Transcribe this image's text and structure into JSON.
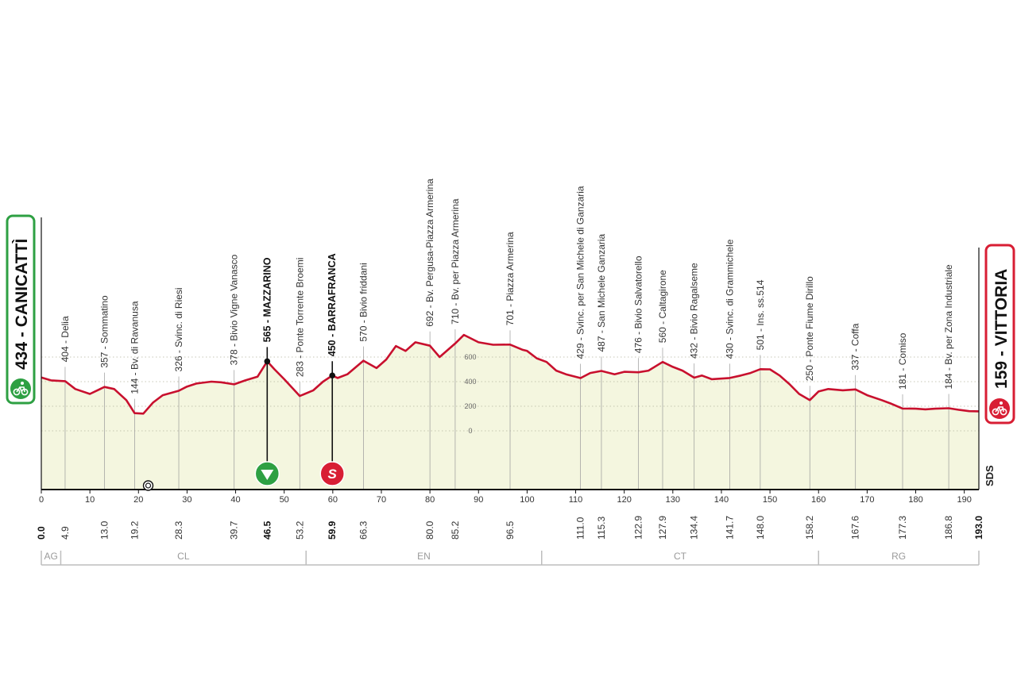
{
  "colors": {
    "profile_fill": "#f4f6df",
    "profile_line": "#c8102e",
    "start_color": "#2ea043",
    "finish_color": "#d81e34",
    "sprint_color": "#d81e34",
    "kom_color": "#2ea043"
  },
  "start": {
    "altitude": "434",
    "name": "CANICATTÌ",
    "label": "434 - CANICATTÌ",
    "icon": "cyclist-icon"
  },
  "finish": {
    "altitude": "159",
    "name": "VITTORIA",
    "label": "159 - VITTORIA",
    "icon": "cyclist-icon"
  },
  "chart_data": {
    "type": "area",
    "xlabel": "",
    "ylabel": "",
    "xlim": [
      0,
      193
    ],
    "x_ticks": [
      0,
      10,
      20,
      30,
      40,
      50,
      60,
      70,
      80,
      90,
      100,
      110,
      120,
      130,
      140,
      150,
      160,
      170,
      180,
      190
    ],
    "y_ticks": [
      0,
      200,
      400,
      600
    ],
    "series": [
      {
        "values_km": [
          0,
          2,
          4.9,
          7,
          10,
          13,
          15,
          17.5,
          19.2,
          21,
          23,
          25,
          28.3,
          30,
          32,
          35,
          37,
          39.7,
          42,
          44.5,
          46.5,
          48,
          50,
          53.2,
          56,
          58,
          59.9,
          61,
          63,
          66.3,
          69,
          71,
          73,
          75,
          77,
          80,
          82,
          85.2,
          87,
          90,
          93,
          96.5,
          99,
          100,
          102,
          104,
          106,
          108,
          111,
          113,
          115.3,
          118,
          120,
          122.9,
          125,
          127.9,
          130,
          132,
          134.4,
          136,
          138,
          141.7,
          144,
          146,
          148,
          150,
          152,
          154,
          156,
          158.2,
          160,
          162,
          165,
          167.6,
          170,
          173,
          175,
          177.3,
          180,
          182,
          184,
          186.8,
          189,
          191,
          193
        ],
        "values_alt": [
          434,
          410,
          404,
          340,
          300,
          357,
          340,
          250,
          144,
          140,
          230,
          290,
          326,
          360,
          385,
          400,
          395,
          378,
          410,
          440,
          565,
          500,
          420,
          283,
          330,
          400,
          450,
          430,
          460,
          570,
          510,
          580,
          690,
          650,
          720,
          692,
          600,
          710,
          780,
          720,
          700,
          701,
          660,
          650,
          590,
          560,
          490,
          460,
          429,
          470,
          487,
          460,
          480,
          476,
          490,
          560,
          520,
          490,
          432,
          450,
          420,
          430,
          450,
          470,
          501,
          500,
          450,
          380,
          300,
          250,
          320,
          340,
          330,
          337,
          290,
          250,
          220,
          181,
          180,
          175,
          180,
          184,
          170,
          160,
          159
        ]
      }
    ],
    "waypoints": [
      {
        "km": "0.0",
        "km_value": 0,
        "alt": 434,
        "label": "434 - CANICATTÌ",
        "bold": true,
        "is_endpoint": true
      },
      {
        "km": "4.9",
        "km_value": 4.9,
        "alt": 404,
        "label": "404 - Delia",
        "bold": false
      },
      {
        "km": "13.0",
        "km_value": 13.0,
        "alt": 357,
        "label": "357 - Sommatino",
        "bold": false
      },
      {
        "km": "19.2",
        "km_value": 19.2,
        "alt": 144,
        "label": "144 - Bv. di Ravanusa",
        "bold": false
      },
      {
        "km": "28.3",
        "km_value": 28.3,
        "alt": 326,
        "label": "326 - Svinc. di Riesi",
        "bold": false
      },
      {
        "km": "39.7",
        "km_value": 39.7,
        "alt": 378,
        "label": "378 - Bivio Vigne Vanasco",
        "bold": false
      },
      {
        "km": "46.5",
        "km_value": 46.5,
        "alt": 565,
        "label": "565 - MAZZARINO",
        "bold": true,
        "marker": "kom"
      },
      {
        "km": "53.2",
        "km_value": 53.2,
        "alt": 283,
        "label": "283 - Ponte Torrente Broemi",
        "bold": false
      },
      {
        "km": "59.9",
        "km_value": 59.9,
        "alt": 450,
        "label": "450 - BARRAFRANCA",
        "bold": true,
        "marker": "sprint"
      },
      {
        "km": "66.3",
        "km_value": 66.3,
        "alt": 570,
        "label": "570 - Bivio friddani",
        "bold": false
      },
      {
        "km": "80.0",
        "km_value": 80.0,
        "alt": 692,
        "label": "692 - Bv. Pergusa-Piazza Armerina",
        "bold": false
      },
      {
        "km": "85.2",
        "km_value": 85.2,
        "alt": 710,
        "label": "710 - Bv. per Piazza Armerina",
        "bold": false
      },
      {
        "km": "96.5",
        "km_value": 96.5,
        "alt": 701,
        "label": "701 - Piazza Armerina",
        "bold": false
      },
      {
        "km": "111.0",
        "km_value": 111.0,
        "alt": 429,
        "label": "429 - Svinc. per San Michele di Ganzaria",
        "bold": false
      },
      {
        "km": "115.3",
        "km_value": 115.3,
        "alt": 487,
        "label": "487 - San Michele Ganzaria",
        "bold": false
      },
      {
        "km": "122.9",
        "km_value": 122.9,
        "alt": 476,
        "label": "476 - Bivio Salvatorello",
        "bold": false
      },
      {
        "km": "127.9",
        "km_value": 127.9,
        "alt": 560,
        "label": "560 - Caltagirone",
        "bold": false
      },
      {
        "km": "134.4",
        "km_value": 134.4,
        "alt": 432,
        "label": "432 - Bivio Ragalseme",
        "bold": false
      },
      {
        "km": "141.7",
        "km_value": 141.7,
        "alt": 430,
        "label": "430 - Svinc. di Grammichele",
        "bold": false
      },
      {
        "km": "148.0",
        "km_value": 148.0,
        "alt": 501,
        "label": "501 - Ins. ss.514",
        "bold": false
      },
      {
        "km": "158.2",
        "km_value": 158.2,
        "alt": 250,
        "label": "250 - Ponte Fiume Dirillo",
        "bold": false
      },
      {
        "km": "167.6",
        "km_value": 167.6,
        "alt": 337,
        "label": "337 - Coffa",
        "bold": false
      },
      {
        "km": "177.3",
        "km_value": 177.3,
        "alt": 181,
        "label": "181 - Comiso",
        "bold": false
      },
      {
        "km": "186.8",
        "km_value": 186.8,
        "alt": 184,
        "label": "184 - Bv. per Zona Industriale",
        "bold": false
      },
      {
        "km": "193.0",
        "km_value": 193.0,
        "alt": 159,
        "label": "159 - VITTORIA",
        "bold": true,
        "is_endpoint": true
      }
    ],
    "feed_zone_km": 22,
    "provinces": [
      {
        "code": "AG",
        "from_km": 0,
        "to_km": 4
      },
      {
        "code": "CL",
        "from_km": 4,
        "to_km": 54.5
      },
      {
        "code": "EN",
        "from_km": 54.5,
        "to_km": 103
      },
      {
        "code": "CT",
        "from_km": 103,
        "to_km": 160
      },
      {
        "code": "RG",
        "from_km": 160,
        "to_km": 193
      }
    ]
  },
  "side_logo": "SDS"
}
